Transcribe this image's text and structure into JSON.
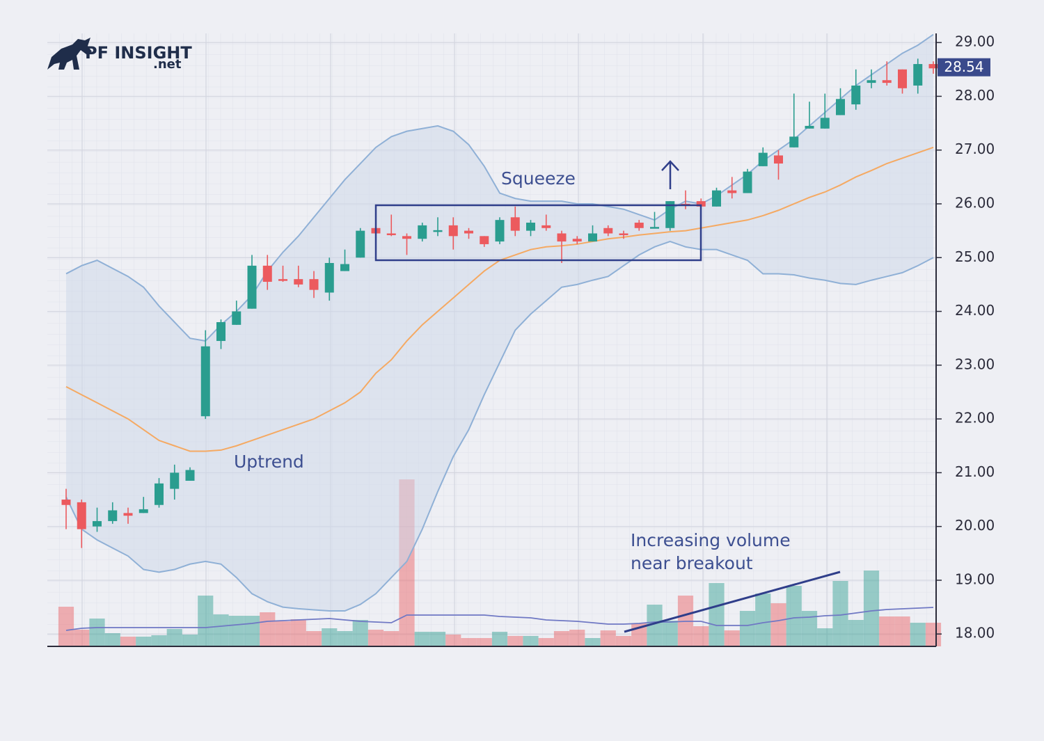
{
  "logo": {
    "name": "PF INSIGHT",
    "suffix": ".net"
  },
  "chart_data": {
    "type": "candlestick",
    "annotations": [
      "Squeeze",
      "Uptrend",
      "Increasing volume",
      "near breakout"
    ],
    "ylim": [
      17.77,
      29.17
    ],
    "yticks": [
      {
        "value": 18,
        "label": "18.00"
      },
      {
        "value": 19,
        "label": "19.00"
      },
      {
        "value": 20,
        "label": "20.00"
      },
      {
        "value": 21,
        "label": "21.00"
      },
      {
        "value": 22,
        "label": "22.00"
      },
      {
        "value": 23,
        "label": "23.00"
      },
      {
        "value": 24,
        "label": "24.00"
      },
      {
        "value": 25,
        "label": "25.00"
      },
      {
        "value": 26,
        "label": "26.00"
      },
      {
        "value": 27,
        "label": "27.00"
      },
      {
        "value": 28,
        "label": "28.00"
      },
      {
        "value": 29,
        "label": "29.00"
      }
    ],
    "last_price": 28.54,
    "grid": true,
    "up_color": "#2a9d8f",
    "down_color": "#ec5a5e",
    "band_color": "#8fb0d6",
    "ma_color": "#f5a962",
    "volume_ma_color": "#6f78c4",
    "open": [
      20.5,
      20.45,
      20.0,
      20.1,
      20.25,
      20.25,
      20.4,
      20.7,
      20.85,
      22.05,
      23.45,
      23.75,
      24.05,
      24.85,
      24.6,
      24.6,
      24.6,
      24.35,
      24.75,
      25.0,
      25.55,
      25.45,
      25.4,
      25.35,
      25.5,
      25.6,
      25.5,
      25.4,
      25.3,
      25.75,
      25.5,
      25.6,
      25.45,
      25.35,
      25.3,
      25.55,
      25.45,
      25.65,
      25.55,
      25.55,
      26.0,
      26.05,
      25.95,
      26.25,
      26.2,
      26.7,
      26.9,
      27.05,
      27.4,
      27.4,
      27.65,
      27.85,
      28.25,
      28.3,
      28.5,
      28.2,
      28.6
    ],
    "high": [
      20.7,
      20.5,
      20.35,
      20.45,
      20.35,
      20.55,
      20.9,
      21.15,
      21.1,
      23.65,
      23.85,
      24.2,
      25.05,
      25.05,
      24.85,
      24.85,
      24.75,
      25.0,
      25.15,
      25.55,
      25.6,
      25.8,
      25.45,
      25.65,
      25.75,
      25.75,
      25.55,
      25.4,
      25.75,
      25.95,
      25.7,
      25.8,
      25.5,
      25.4,
      25.6,
      25.6,
      25.5,
      25.7,
      25.85,
      26.05,
      26.25,
      26.1,
      26.3,
      26.5,
      26.65,
      27.05,
      27.0,
      28.05,
      27.9,
      28.05,
      28.15,
      28.5,
      28.5,
      28.65,
      28.5,
      28.7,
      28.65
    ],
    "low": [
      19.95,
      19.6,
      19.9,
      20.05,
      20.05,
      20.25,
      20.35,
      20.5,
      20.85,
      22.0,
      23.3,
      23.75,
      24.05,
      24.4,
      24.55,
      24.45,
      24.25,
      24.2,
      24.75,
      25.0,
      25.4,
      25.4,
      25.05,
      25.3,
      25.4,
      25.15,
      25.35,
      25.2,
      25.25,
      25.4,
      25.4,
      25.5,
      24.9,
      25.25,
      25.3,
      25.4,
      25.35,
      25.5,
      25.55,
      25.5,
      25.9,
      25.9,
      25.95,
      26.1,
      26.2,
      26.7,
      26.45,
      27.05,
      27.4,
      27.4,
      27.65,
      27.75,
      28.15,
      28.2,
      28.05,
      28.05,
      28.42
    ],
    "close": [
      20.4,
      19.95,
      20.1,
      20.3,
      20.2,
      20.32,
      20.8,
      21.0,
      21.05,
      23.35,
      23.8,
      24.0,
      24.85,
      24.55,
      24.58,
      24.5,
      24.4,
      24.9,
      24.88,
      25.5,
      25.45,
      25.44,
      25.35,
      25.6,
      25.51,
      25.4,
      25.45,
      25.25,
      25.7,
      25.5,
      25.65,
      25.55,
      25.3,
      25.3,
      25.45,
      25.45,
      25.44,
      25.55,
      25.57,
      26.05,
      25.98,
      25.95,
      26.25,
      26.2,
      26.6,
      26.95,
      26.75,
      27.25,
      27.45,
      27.6,
      27.95,
      28.2,
      28.3,
      28.25,
      28.15,
      28.6,
      28.52
    ],
    "bb_upper": [
      24.7,
      24.85,
      24.95,
      24.8,
      24.65,
      24.45,
      24.1,
      23.8,
      23.5,
      23.45,
      23.75,
      24.0,
      24.3,
      24.75,
      25.1,
      25.4,
      25.75,
      26.1,
      26.45,
      26.75,
      27.05,
      27.25,
      27.35,
      27.4,
      27.45,
      27.35,
      27.1,
      26.7,
      26.2,
      26.1,
      26.05,
      26.05,
      26.05,
      26.0,
      26.0,
      25.95,
      25.9,
      25.8,
      25.7,
      25.9,
      26.05,
      26.0,
      26.15,
      26.35,
      26.55,
      26.8,
      27.0,
      27.2,
      27.45,
      27.7,
      27.95,
      28.2,
      28.4,
      28.6,
      28.8,
      28.95,
      29.15
    ],
    "bb_middle": [
      22.6,
      22.45,
      22.3,
      22.15,
      22.0,
      21.8,
      21.6,
      21.5,
      21.4,
      21.4,
      21.42,
      21.5,
      21.6,
      21.7,
      21.8,
      21.9,
      22.0,
      22.15,
      22.3,
      22.5,
      22.85,
      23.1,
      23.45,
      23.75,
      24.0,
      24.25,
      24.5,
      24.75,
      24.95,
      25.05,
      25.15,
      25.2,
      25.22,
      25.25,
      25.3,
      25.35,
      25.38,
      25.42,
      25.45,
      25.48,
      25.5,
      25.55,
      25.6,
      25.65,
      25.7,
      25.78,
      25.88,
      26.0,
      26.12,
      26.22,
      26.35,
      26.5,
      26.62,
      26.75,
      26.85,
      26.95,
      27.05
    ],
    "bb_lower": [
      20.55,
      19.95,
      19.75,
      19.6,
      19.45,
      19.2,
      19.15,
      19.2,
      19.3,
      19.35,
      19.3,
      19.05,
      18.75,
      18.6,
      18.5,
      18.47,
      18.45,
      18.43,
      18.43,
      18.55,
      18.75,
      19.05,
      19.35,
      19.95,
      20.65,
      21.3,
      21.8,
      22.45,
      23.05,
      23.65,
      23.95,
      24.2,
      24.45,
      24.5,
      24.58,
      24.65,
      24.85,
      25.05,
      25.2,
      25.3,
      25.2,
      25.15,
      25.15,
      25.05,
      24.95,
      24.7,
      24.7,
      24.68,
      24.62,
      24.58,
      24.52,
      24.5,
      24.58,
      24.65,
      24.72,
      24.85,
      25.0
    ],
    "volume": [
      57,
      24,
      40,
      19,
      14,
      14,
      16,
      25,
      17,
      73,
      46,
      44,
      44,
      49,
      36,
      39,
      22,
      26,
      22,
      38,
      24,
      22,
      240,
      21,
      21,
      17,
      12,
      12,
      21,
      15,
      15,
      12,
      22,
      24,
      12,
      23,
      15,
      33,
      60,
      37,
      73,
      29,
      91,
      23,
      51,
      76,
      62,
      87,
      51,
      26,
      94,
      38,
      109,
      43,
      43,
      34,
      34
    ],
    "volume_ma": [
      23,
      26,
      27,
      27,
      27,
      27,
      27,
      27,
      27,
      27,
      29,
      31,
      33,
      36,
      37,
      38,
      39,
      40,
      38,
      36,
      35,
      34,
      45,
      45,
      45,
      45,
      45,
      45,
      43,
      42,
      41,
      38,
      37,
      36,
      34,
      32,
      32,
      33,
      35,
      35,
      36,
      36,
      30,
      30,
      30,
      34,
      37,
      41,
      42,
      44,
      45,
      48,
      51,
      53,
      54,
      55,
      56
    ]
  }
}
